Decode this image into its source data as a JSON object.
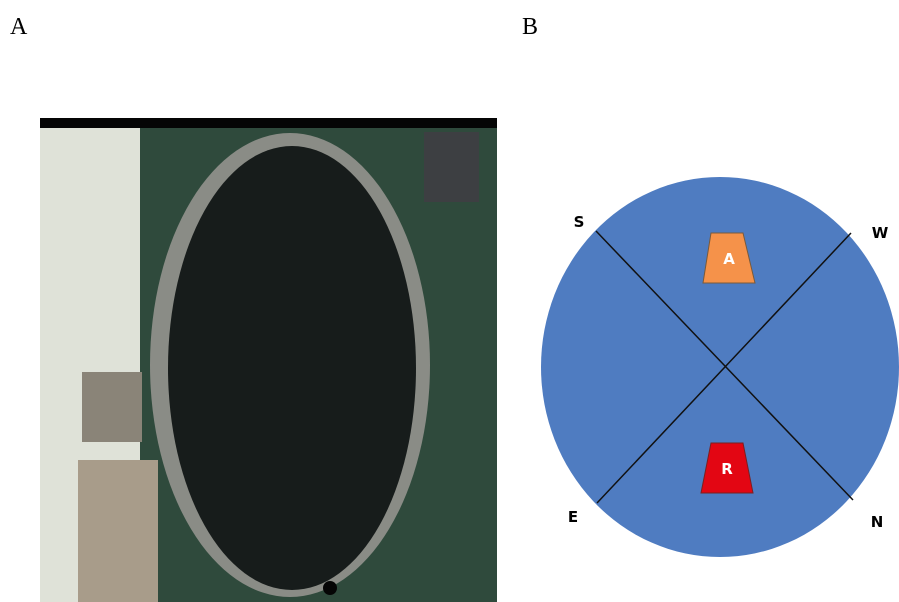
{
  "panel_labels": [
    "A",
    "B"
  ],
  "compass": {
    "south": "S",
    "west": "W",
    "east": "E",
    "north": "N"
  },
  "markers": {
    "top": "A",
    "bottom": "R"
  }
}
